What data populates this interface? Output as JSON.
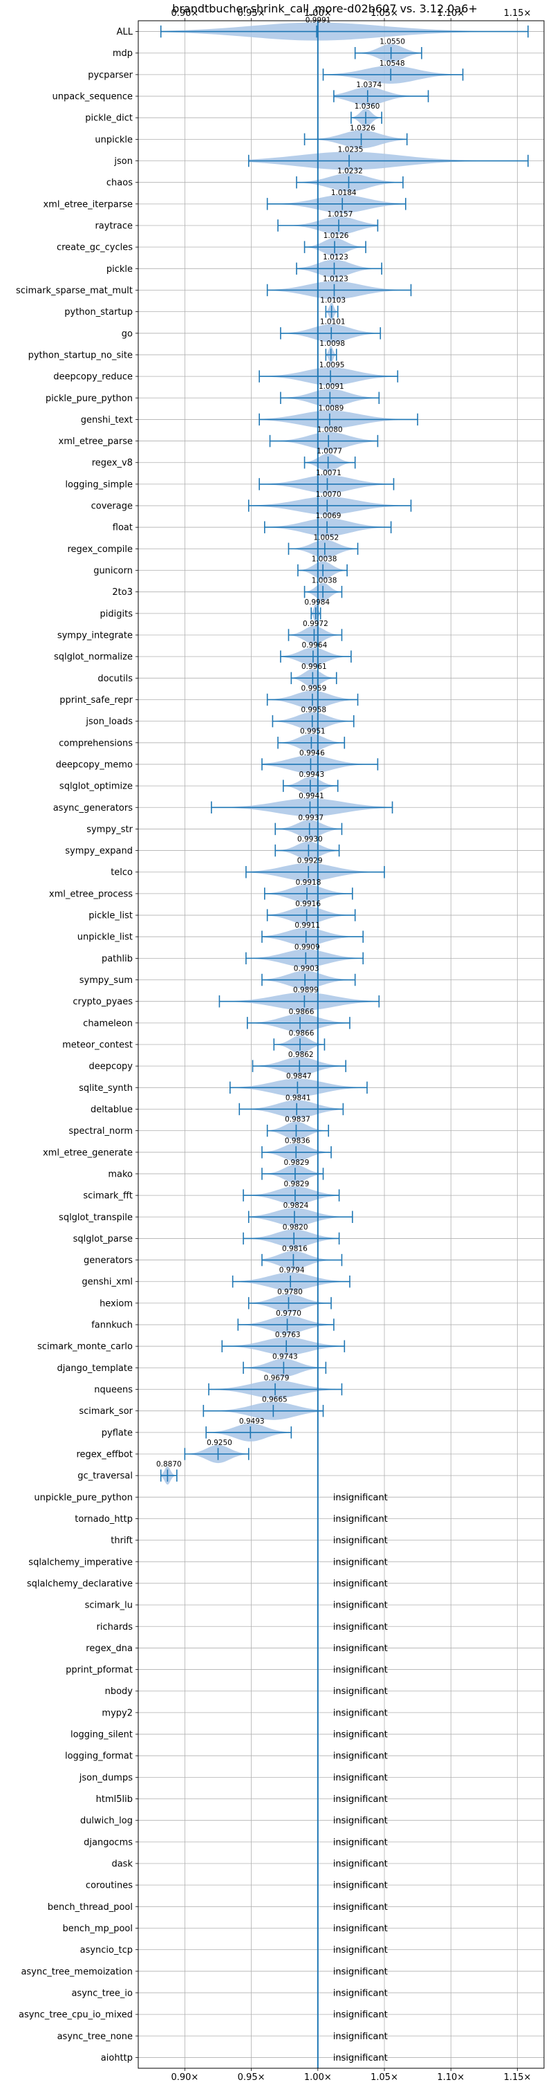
{
  "chart_data": {
    "type": "violin",
    "title": "brandtbucher-shrink_call_more-d02b607 vs. 3.12.0a6+",
    "xlim": [
      0.865,
      1.17
    ],
    "xticks": [
      0.9,
      0.95,
      1.0,
      1.05,
      1.1,
      1.15
    ],
    "xtick_labels": [
      "0.90×",
      "0.95×",
      "1.00×",
      "1.05×",
      "1.10×",
      "1.15×"
    ],
    "reference_line": 1.0,
    "grid": true,
    "colors": {
      "violin": "#a9c6e6",
      "line": "#1f77b4",
      "grid": "#b0b0b0"
    },
    "insignificant_label": "insignificant",
    "series": [
      {
        "name": "ALL",
        "mean": 0.9991,
        "min": 0.882,
        "max": 1.158,
        "label": "0.9991"
      },
      {
        "name": "mdp",
        "mean": 1.055,
        "min": 1.028,
        "max": 1.078,
        "label": "1.0550"
      },
      {
        "name": "pycparser",
        "mean": 1.0548,
        "min": 1.004,
        "max": 1.109,
        "label": "1.0548"
      },
      {
        "name": "unpack_sequence",
        "mean": 1.0374,
        "min": 1.012,
        "max": 1.083,
        "label": "1.0374"
      },
      {
        "name": "pickle_dict",
        "mean": 1.036,
        "min": 1.025,
        "max": 1.048,
        "label": "1.0360"
      },
      {
        "name": "unpickle",
        "mean": 1.0326,
        "min": 0.99,
        "max": 1.067,
        "label": "1.0326"
      },
      {
        "name": "json",
        "mean": 1.0235,
        "min": 0.948,
        "max": 1.158,
        "label": "1.0235"
      },
      {
        "name": "chaos",
        "mean": 1.0232,
        "min": 0.984,
        "max": 1.064,
        "label": "1.0232"
      },
      {
        "name": "xml_etree_iterparse",
        "mean": 1.0184,
        "min": 0.962,
        "max": 1.066,
        "label": "1.0184"
      },
      {
        "name": "raytrace",
        "mean": 1.0157,
        "min": 0.97,
        "max": 1.045,
        "label": "1.0157"
      },
      {
        "name": "create_gc_cycles",
        "mean": 1.0126,
        "min": 0.99,
        "max": 1.036,
        "label": "1.0126"
      },
      {
        "name": "pickle",
        "mean": 1.0123,
        "min": 0.984,
        "max": 1.048,
        "label": "1.0123"
      },
      {
        "name": "scimark_sparse_mat_mult",
        "mean": 1.0123,
        "min": 0.962,
        "max": 1.07,
        "label": "1.0123"
      },
      {
        "name": "python_startup",
        "mean": 1.0103,
        "min": 1.006,
        "max": 1.015,
        "label": "1.0103"
      },
      {
        "name": "go",
        "mean": 1.0101,
        "min": 0.972,
        "max": 1.047,
        "label": "1.0101"
      },
      {
        "name": "python_startup_no_site",
        "mean": 1.0098,
        "min": 1.006,
        "max": 1.014,
        "label": "1.0098"
      },
      {
        "name": "deepcopy_reduce",
        "mean": 1.0095,
        "min": 0.956,
        "max": 1.06,
        "label": "1.0095"
      },
      {
        "name": "pickle_pure_python",
        "mean": 1.0091,
        "min": 0.972,
        "max": 1.046,
        "label": "1.0091"
      },
      {
        "name": "genshi_text",
        "mean": 1.0089,
        "min": 0.956,
        "max": 1.075,
        "label": "1.0089"
      },
      {
        "name": "xml_etree_parse",
        "mean": 1.008,
        "min": 0.964,
        "max": 1.045,
        "label": "1.0080"
      },
      {
        "name": "regex_v8",
        "mean": 1.0077,
        "min": 0.99,
        "max": 1.028,
        "label": "1.0077"
      },
      {
        "name": "logging_simple",
        "mean": 1.0071,
        "min": 0.956,
        "max": 1.057,
        "label": "1.0071"
      },
      {
        "name": "coverage",
        "mean": 1.007,
        "min": 0.948,
        "max": 1.07,
        "label": "1.0070"
      },
      {
        "name": "float",
        "mean": 1.0069,
        "min": 0.96,
        "max": 1.055,
        "label": "1.0069"
      },
      {
        "name": "regex_compile",
        "mean": 1.0052,
        "min": 0.978,
        "max": 1.03,
        "label": "1.0052"
      },
      {
        "name": "gunicorn",
        "mean": 1.0038,
        "min": 0.985,
        "max": 1.022,
        "label": "1.0038"
      },
      {
        "name": "2to3",
        "mean": 1.0038,
        "min": 0.99,
        "max": 1.018,
        "label": "1.0038"
      },
      {
        "name": "pidigits",
        "mean": 0.9984,
        "min": 0.995,
        "max": 1.002,
        "label": "0.9984"
      },
      {
        "name": "sympy_integrate",
        "mean": 0.9972,
        "min": 0.978,
        "max": 1.018,
        "label": "0.9972"
      },
      {
        "name": "sqlglot_normalize",
        "mean": 0.9964,
        "min": 0.972,
        "max": 1.025,
        "label": "0.9964"
      },
      {
        "name": "docutils",
        "mean": 0.9961,
        "min": 0.98,
        "max": 1.014,
        "label": "0.9961"
      },
      {
        "name": "pprint_safe_repr",
        "mean": 0.9959,
        "min": 0.962,
        "max": 1.03,
        "label": "0.9959"
      },
      {
        "name": "json_loads",
        "mean": 0.9958,
        "min": 0.966,
        "max": 1.027,
        "label": "0.9958"
      },
      {
        "name": "comprehensions",
        "mean": 0.9951,
        "min": 0.97,
        "max": 1.02,
        "label": "0.9951"
      },
      {
        "name": "deepcopy_memo",
        "mean": 0.9946,
        "min": 0.958,
        "max": 1.045,
        "label": "0.9946"
      },
      {
        "name": "sqlglot_optimize",
        "mean": 0.9943,
        "min": 0.974,
        "max": 1.015,
        "label": "0.9943"
      },
      {
        "name": "async_generators",
        "mean": 0.9941,
        "min": 0.92,
        "max": 1.056,
        "label": "0.9941"
      },
      {
        "name": "sympy_str",
        "mean": 0.9937,
        "min": 0.968,
        "max": 1.018,
        "label": "0.9937"
      },
      {
        "name": "sympy_expand",
        "mean": 0.993,
        "min": 0.968,
        "max": 1.016,
        "label": "0.9930"
      },
      {
        "name": "telco",
        "mean": 0.9929,
        "min": 0.946,
        "max": 1.05,
        "label": "0.9929"
      },
      {
        "name": "xml_etree_process",
        "mean": 0.9918,
        "min": 0.96,
        "max": 1.026,
        "label": "0.9918"
      },
      {
        "name": "pickle_list",
        "mean": 0.9916,
        "min": 0.962,
        "max": 1.028,
        "label": "0.9916"
      },
      {
        "name": "unpickle_list",
        "mean": 0.9911,
        "min": 0.958,
        "max": 1.034,
        "label": "0.9911"
      },
      {
        "name": "pathlib",
        "mean": 0.9909,
        "min": 0.946,
        "max": 1.034,
        "label": "0.9909"
      },
      {
        "name": "sympy_sum",
        "mean": 0.9903,
        "min": 0.958,
        "max": 1.028,
        "label": "0.9903"
      },
      {
        "name": "crypto_pyaes",
        "mean": 0.9899,
        "min": 0.926,
        "max": 1.046,
        "label": "0.9899"
      },
      {
        "name": "chameleon",
        "mean": 0.9866,
        "min": 0.947,
        "max": 1.024,
        "label": "0.9866"
      },
      {
        "name": "meteor_contest",
        "mean": 0.9866,
        "min": 0.967,
        "max": 1.005,
        "label": "0.9866"
      },
      {
        "name": "deepcopy",
        "mean": 0.9862,
        "min": 0.951,
        "max": 1.021,
        "label": "0.9862"
      },
      {
        "name": "sqlite_synth",
        "mean": 0.9847,
        "min": 0.934,
        "max": 1.037,
        "label": "0.9847"
      },
      {
        "name": "deltablue",
        "mean": 0.9841,
        "min": 0.941,
        "max": 1.019,
        "label": "0.9841"
      },
      {
        "name": "spectral_norm",
        "mean": 0.9837,
        "min": 0.962,
        "max": 1.008,
        "label": "0.9837"
      },
      {
        "name": "xml_etree_generate",
        "mean": 0.9836,
        "min": 0.958,
        "max": 1.01,
        "label": "0.9836"
      },
      {
        "name": "mako",
        "mean": 0.9829,
        "min": 0.958,
        "max": 1.004,
        "label": "0.9829"
      },
      {
        "name": "scimark_fft",
        "mean": 0.9829,
        "min": 0.944,
        "max": 1.016,
        "label": "0.9829"
      },
      {
        "name": "sqlglot_transpile",
        "mean": 0.9824,
        "min": 0.948,
        "max": 1.026,
        "label": "0.9824"
      },
      {
        "name": "sqlglot_parse",
        "mean": 0.982,
        "min": 0.944,
        "max": 1.016,
        "label": "0.9820"
      },
      {
        "name": "generators",
        "mean": 0.9816,
        "min": 0.958,
        "max": 1.018,
        "label": "0.9816"
      },
      {
        "name": "genshi_xml",
        "mean": 0.9794,
        "min": 0.936,
        "max": 1.024,
        "label": "0.9794"
      },
      {
        "name": "hexiom",
        "mean": 0.978,
        "min": 0.948,
        "max": 1.01,
        "label": "0.9780"
      },
      {
        "name": "fannkuch",
        "mean": 0.977,
        "min": 0.94,
        "max": 1.012,
        "label": "0.9770"
      },
      {
        "name": "scimark_monte_carlo",
        "mean": 0.9763,
        "min": 0.928,
        "max": 1.02,
        "label": "0.9763"
      },
      {
        "name": "django_template",
        "mean": 0.9743,
        "min": 0.944,
        "max": 1.006,
        "label": "0.9743"
      },
      {
        "name": "nqueens",
        "mean": 0.9679,
        "min": 0.918,
        "max": 1.018,
        "label": "0.9679"
      },
      {
        "name": "scimark_sor",
        "mean": 0.9665,
        "min": 0.914,
        "max": 1.004,
        "label": "0.9665"
      },
      {
        "name": "pyflate",
        "mean": 0.9493,
        "min": 0.916,
        "max": 0.98,
        "label": "0.9493"
      },
      {
        "name": "regex_effbot",
        "mean": 0.925,
        "min": 0.9,
        "max": 0.948,
        "label": "0.9250"
      },
      {
        "name": "gc_traversal",
        "mean": 0.887,
        "min": 0.882,
        "max": 0.894,
        "label": "0.8870"
      },
      {
        "name": "unpickle_pure_python",
        "insignificant": true
      },
      {
        "name": "tornado_http",
        "insignificant": true
      },
      {
        "name": "thrift",
        "insignificant": true
      },
      {
        "name": "sqlalchemy_imperative",
        "insignificant": true
      },
      {
        "name": "sqlalchemy_declarative",
        "insignificant": true
      },
      {
        "name": "scimark_lu",
        "insignificant": true
      },
      {
        "name": "richards",
        "insignificant": true
      },
      {
        "name": "regex_dna",
        "insignificant": true
      },
      {
        "name": "pprint_pformat",
        "insignificant": true
      },
      {
        "name": "nbody",
        "insignificant": true
      },
      {
        "name": "mypy2",
        "insignificant": true
      },
      {
        "name": "logging_silent",
        "insignificant": true
      },
      {
        "name": "logging_format",
        "insignificant": true
      },
      {
        "name": "json_dumps",
        "insignificant": true
      },
      {
        "name": "html5lib",
        "insignificant": true
      },
      {
        "name": "dulwich_log",
        "insignificant": true
      },
      {
        "name": "djangocms",
        "insignificant": true
      },
      {
        "name": "dask",
        "insignificant": true
      },
      {
        "name": "coroutines",
        "insignificant": true
      },
      {
        "name": "bench_thread_pool",
        "insignificant": true
      },
      {
        "name": "bench_mp_pool",
        "insignificant": true
      },
      {
        "name": "asyncio_tcp",
        "insignificant": true
      },
      {
        "name": "async_tree_memoization",
        "insignificant": true
      },
      {
        "name": "async_tree_io",
        "insignificant": true
      },
      {
        "name": "async_tree_cpu_io_mixed",
        "insignificant": true
      },
      {
        "name": "async_tree_none",
        "insignificant": true
      },
      {
        "name": "aiohttp",
        "insignificant": true
      }
    ]
  }
}
